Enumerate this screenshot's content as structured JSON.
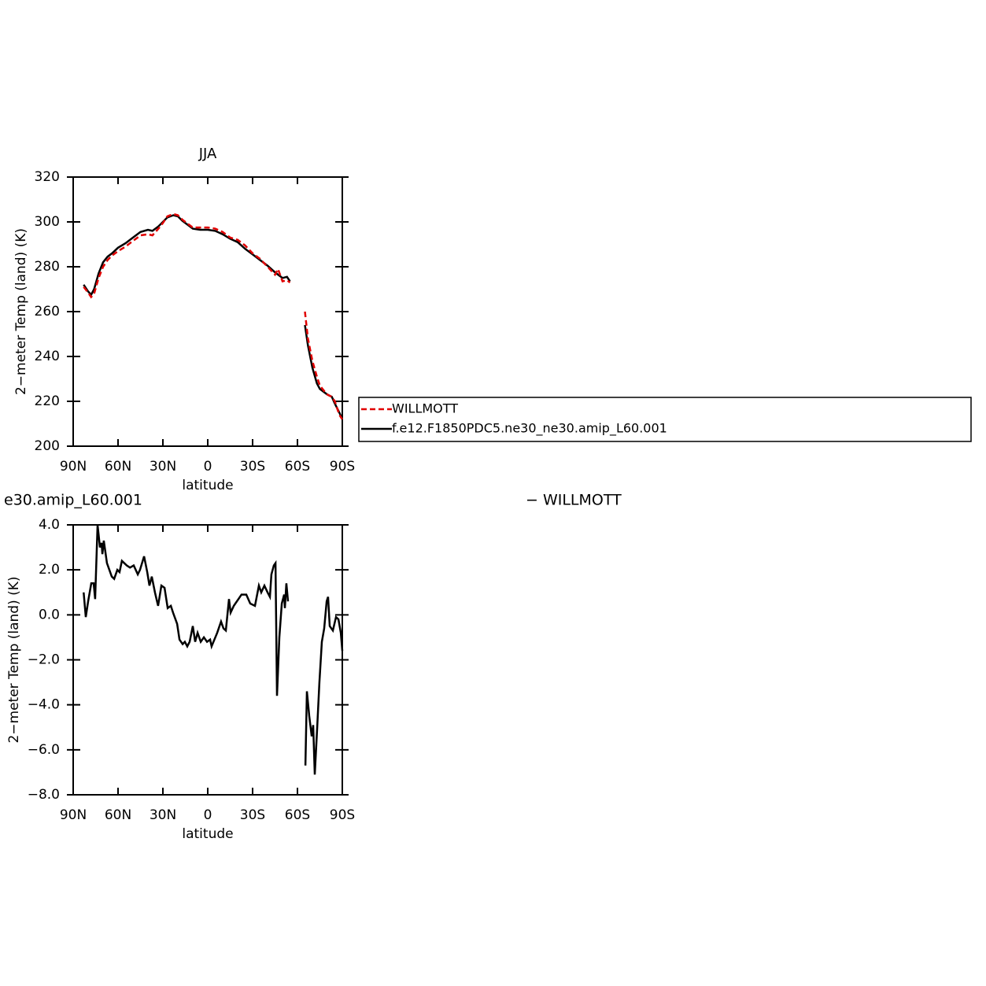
{
  "chart_data": [
    {
      "type": "line",
      "title": "JJA",
      "xlabel": "latitude",
      "ylabel": "2−meter Temp (land) (K)",
      "xlim": [
        90,
        -90
      ],
      "ylim": [
        200,
        320
      ],
      "xticks": [
        {
          "value": 90,
          "label": "90N"
        },
        {
          "value": 60,
          "label": "60N"
        },
        {
          "value": 30,
          "label": "30N"
        },
        0,
        {
          "value": -30,
          "label": "30S"
        },
        {
          "value": -60,
          "label": "60S"
        },
        {
          "value": -90,
          "label": "90S"
        }
      ],
      "yticks": [
        200,
        220,
        240,
        260,
        280,
        300,
        320
      ],
      "legend": "right",
      "x": [
        83,
        80,
        78,
        76,
        73,
        70,
        67,
        64,
        60,
        55,
        50,
        45,
        40,
        37,
        33,
        30,
        27,
        23,
        20,
        17,
        13,
        10,
        5,
        0,
        -5,
        -10,
        -15,
        -20,
        -25,
        -30,
        -35,
        -40,
        -45,
        -47,
        -50,
        -53,
        -55,
        -60,
        -65,
        -67,
        -70,
        -73,
        -75,
        -78,
        -80,
        -83,
        -85,
        -88,
        -90
      ],
      "series": [
        {
          "name": "WILLMOTT",
          "color": "#e00000",
          "line_style": "dashed",
          "values": [
            271,
            268.5,
            266.5,
            268,
            275,
            280,
            283,
            285,
            287,
            289,
            291.5,
            294,
            294.5,
            294,
            297,
            299.5,
            302.5,
            303.5,
            303,
            301,
            299,
            297.5,
            297.5,
            297.5,
            297,
            295.5,
            293,
            292,
            289.5,
            286,
            283.5,
            280,
            276.5,
            279,
            273.5,
            274,
            273,
            null,
            260,
            248,
            238,
            231,
            227,
            224.5,
            223,
            222,
            220,
            214,
            212
          ]
        },
        {
          "name": "f.e12.F1850PDC5.ne30_ne30.amip_L60.001",
          "color": "#000000",
          "line_style": "solid",
          "values": [
            272,
            269,
            267.5,
            270,
            277,
            282,
            284.5,
            286,
            288.5,
            290.5,
            293,
            295.5,
            296.5,
            296,
            298,
            300,
            302,
            303,
            302.5,
            300.5,
            298.5,
            297,
            296.5,
            296.5,
            296,
            294.5,
            292.5,
            291,
            288,
            285.5,
            283,
            280.5,
            277.5,
            276.5,
            275,
            275.5,
            273.5,
            null,
            254,
            245,
            235,
            228,
            225.5,
            224,
            223,
            222,
            219,
            215,
            212
          ]
        }
      ]
    },
    {
      "type": "line",
      "left_title": "e30.amip_L60.001",
      "right_title": "− WILLMOTT",
      "xlabel": "latitude",
      "ylabel": "2−meter Temp (land) (K)",
      "xlim": [
        90,
        -90
      ],
      "ylim": [
        -8,
        4
      ],
      "xticks": [
        {
          "value": 90,
          "label": "90N"
        },
        {
          "value": 60,
          "label": "60N"
        },
        {
          "value": 30,
          "label": "30N"
        },
        0,
        {
          "value": -30,
          "label": "30S"
        },
        {
          "value": -60,
          "label": "60S"
        },
        {
          "value": -90,
          "label": "90S"
        }
      ],
      "yticks": [
        {
          "value": -8,
          "label": "−8.0"
        },
        {
          "value": -6,
          "label": "−6.0"
        },
        {
          "value": -4,
          "label": "−4.0"
        },
        {
          "value": -2,
          "label": "−2.0"
        },
        {
          "value": 0,
          "label": "0.0"
        },
        {
          "value": 2,
          "label": "2.0"
        },
        {
          "value": 4,
          "label": "4.0"
        }
      ],
      "x": [
        83,
        81.6,
        80,
        77.9,
        76.3,
        75.3,
        73.7,
        72.1,
        71,
        70.5,
        69.5,
        67.4,
        64.2,
        62.6,
        60.5,
        59,
        57.4,
        54.2,
        52,
        49.5,
        46.8,
        45.3,
        42.6,
        40.5,
        39,
        37.4,
        35.3,
        33.2,
        31,
        28.9,
        26.8,
        24.7,
        23.2,
        20.5,
        18.9,
        16.8,
        15.3,
        13.7,
        12.1,
        10,
        8.4,
        6.8,
        4.7,
        2.6,
        0.5,
        -1.6,
        -2.6,
        -6.3,
        -8.9,
        -10.5,
        -12.1,
        -14.2,
        -15.3,
        -17.4,
        -20.5,
        -22.6,
        -25.8,
        -28.4,
        -31.6,
        -34.2,
        -35.8,
        -37.9,
        -40,
        -41.6,
        -42.6,
        -44.2,
        -45.3,
        -46.3,
        -47.9,
        -49.5,
        -51.1,
        -51.6,
        -52.6,
        -53.7,
        -60,
        -65.3,
        -66.3,
        -67.9,
        -69.5,
        -70.5,
        -71.6,
        -73.2,
        -74.7,
        -76.3,
        -77.9,
        -79.5,
        -80.5,
        -81.6,
        -83.7,
        -85.8,
        -87.4,
        -89,
        -90
      ],
      "series": [
        {
          "color": "#000000",
          "line_style": "solid",
          "values": [
            1.0,
            -0.1,
            0.6,
            1.4,
            1.4,
            0.7,
            4.0,
            3.0,
            3.2,
            2.7,
            3.3,
            2.3,
            1.7,
            1.6,
            2.0,
            1.9,
            2.4,
            2.2,
            2.1,
            2.2,
            1.8,
            2.0,
            2.6,
            1.9,
            1.3,
            1.7,
            1.0,
            0.4,
            1.3,
            1.2,
            0.3,
            0.4,
            0.1,
            -0.4,
            -1.1,
            -1.3,
            -1.2,
            -1.4,
            -1.2,
            -0.5,
            -1.2,
            -0.8,
            -1.2,
            -1.0,
            -1.2,
            -1.1,
            -1.4,
            -0.8,
            -0.3,
            -0.6,
            -0.7,
            0.7,
            0.1,
            0.4,
            0.7,
            0.9,
            0.9,
            0.5,
            0.4,
            1.3,
            1.0,
            1.3,
            1.0,
            0.8,
            1.8,
            2.2,
            2.3,
            -3.6,
            -1.0,
            0.5,
            0.9,
            0.3,
            1.4,
            0.6,
            null,
            -6.7,
            -3.4,
            -4.5,
            -5.4,
            -4.9,
            -7.1,
            -5.0,
            -3.0,
            -1.2,
            -0.6,
            0.6,
            0.8,
            -0.5,
            -0.7,
            -0.1,
            -0.2,
            -0.8,
            -1.6
          ]
        }
      ]
    }
  ]
}
